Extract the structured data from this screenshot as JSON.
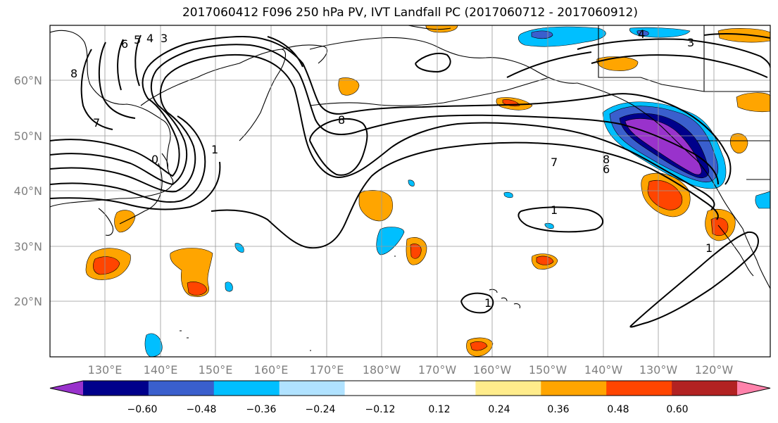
{
  "title": "2017060412 F096 250 hPa PV, IVT Landfall PC (2017060712 - 2017060912)",
  "map": {
    "lat_labels": [
      "60°N",
      "50°N",
      "40°N",
      "30°N",
      "20°N"
    ],
    "lon_labels": [
      "130°E",
      "140°E",
      "150°E",
      "160°E",
      "170°E",
      "180°W",
      "170°W",
      "160°W",
      "150°W",
      "140°W",
      "130°W",
      "120°W"
    ],
    "contour_labels": [
      "6",
      "5",
      "4",
      "3",
      "8",
      "7",
      "0",
      "1",
      "8",
      "7",
      "8",
      "6",
      "1",
      "4",
      "3",
      "1",
      "1"
    ]
  },
  "colorbar": {
    "colors": [
      "#9932cc",
      "#00008b",
      "#3a5fcd",
      "#00bfff",
      "#b0e2ff",
      "#ffffff",
      "#ffffff",
      "#ffec8b",
      "#ffa500",
      "#ff4500",
      "#b22222",
      "#ff82ab"
    ],
    "ticks": [
      "−0.60",
      "−0.48",
      "−0.36",
      "−0.24",
      "−0.12",
      "0.12",
      "0.24",
      "0.36",
      "0.48",
      "0.60"
    ]
  }
}
